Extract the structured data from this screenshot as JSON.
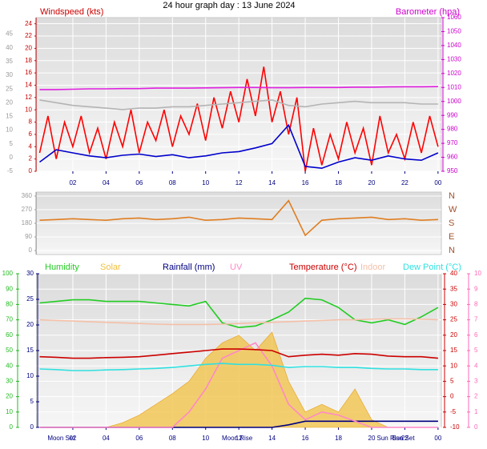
{
  "chart_data": [
    {
      "type": "line",
      "title": "24 hour graph day : 13 June 2024",
      "ylabel": "Windspeed (kts)",
      "y2label": "Barometer (hpa)",
      "x": [
        0,
        1,
        2,
        3,
        4,
        5,
        6,
        7,
        8,
        9,
        10,
        11,
        12,
        13,
        14,
        15,
        16,
        17,
        18,
        19,
        20,
        21,
        22,
        23,
        24
      ],
      "xlim": [
        0,
        24.2
      ],
      "xticks": [
        {
          "value": 2,
          "label": "02"
        },
        {
          "value": 4,
          "label": "04"
        },
        {
          "value": 6,
          "label": "06"
        },
        {
          "value": 8,
          "label": "08"
        },
        10,
        12,
        14,
        16,
        18,
        20,
        22,
        {
          "value": 24,
          "label": "00"
        }
      ],
      "ylim": [
        0,
        25
      ],
      "yticks": [
        0,
        2,
        4,
        6,
        8,
        10,
        12,
        14,
        16,
        18,
        20,
        22,
        24
      ],
      "y2lim": [
        950,
        1060
      ],
      "y2ticks": [
        950,
        960,
        970,
        980,
        990,
        1000,
        1010,
        1020,
        1030,
        1040,
        1050,
        1060
      ],
      "y3lim": [
        -5,
        51
      ],
      "y3ticks": [
        -5,
        0,
        5,
        10,
        15,
        20,
        25,
        30,
        35,
        40,
        45
      ],
      "grid": true,
      "series": [
        {
          "color": "#ff0000",
          "x": [
            0,
            0.5,
            1,
            1.5,
            2,
            2.5,
            3,
            3.5,
            4,
            4.5,
            5,
            5.5,
            6,
            6.5,
            7,
            7.5,
            8,
            8.5,
            9,
            9.5,
            10,
            10.5,
            11,
            11.5,
            12,
            12.5,
            13,
            13.5,
            14,
            14.5,
            15,
            15.5,
            16,
            16.5,
            17,
            17.5,
            18,
            18.5,
            19,
            19.5,
            20,
            20.5,
            21,
            21.5,
            22,
            22.5,
            23,
            23.5,
            24
          ],
          "values": [
            3,
            9,
            2,
            8,
            4,
            9,
            3,
            7,
            2,
            8,
            4,
            10,
            3,
            8,
            5,
            10,
            4,
            9,
            6,
            11,
            5,
            12,
            7,
            13,
            8,
            15,
            9,
            17,
            8,
            13,
            6,
            12,
            0,
            7,
            1,
            6,
            2,
            8,
            3,
            7,
            1,
            9,
            3,
            6,
            2,
            8,
            3,
            9,
            4
          ]
        },
        {
          "color": "#0000cc",
          "values": [
            1.5,
            3.5,
            3,
            2.5,
            2.2,
            2.6,
            2.8,
            2.4,
            2.7,
            2.2,
            2.5,
            3,
            3.2,
            3.8,
            4.5,
            7.5,
            0.8,
            0.5,
            1.5,
            2.2,
            1.8,
            2.5,
            2,
            1.8,
            3
          ]
        },
        {
          "color": "#b4b4b4",
          "axis": "y3",
          "values": [
            21,
            20,
            19,
            18.5,
            18,
            17.5,
            18,
            18,
            18.5,
            18.5,
            19,
            19.5,
            20,
            20.5,
            21,
            19,
            18.5,
            19.5,
            20,
            20.5,
            20,
            20,
            20,
            19.5,
            19.5
          ]
        },
        {
          "color": "#e020e0",
          "axis": "y2",
          "values": [
            1008.5,
            1008.5,
            1008.7,
            1009,
            1009,
            1009.2,
            1009.2,
            1009.5,
            1009.5,
            1009.5,
            1009.7,
            1009.8,
            1010,
            1010,
            1009.8,
            1009.8,
            1010,
            1010,
            1010,
            1010.2,
            1010.2,
            1010.4,
            1010.5,
            1010.5,
            1010.6
          ]
        }
      ]
    },
    {
      "type": "line",
      "x": [
        0,
        1,
        2,
        3,
        4,
        5,
        6,
        7,
        8,
        9,
        10,
        11,
        12,
        13,
        14,
        15,
        16,
        17,
        18,
        19,
        20,
        21,
        22,
        23,
        24
      ],
      "xlim": [
        0,
        24.2
      ],
      "ylim": [
        0,
        360
      ],
      "yticks": [
        0,
        90,
        180,
        270,
        360
      ],
      "y2lim": [
        0,
        360
      ],
      "y2ticks": [
        {
          "value": 360,
          "label": "N"
        },
        {
          "value": 270,
          "label": "W"
        },
        {
          "value": 180,
          "label": "S"
        },
        {
          "value": 90,
          "label": "E"
        },
        {
          "value": 0,
          "label": "N"
        }
      ],
      "grid": true,
      "series": [
        {
          "color": "#e07d20",
          "values": [
            200,
            205,
            210,
            205,
            200,
            210,
            215,
            205,
            210,
            220,
            200,
            205,
            215,
            210,
            205,
            330,
            100,
            200,
            210,
            215,
            220,
            205,
            210,
            200,
            205
          ]
        }
      ]
    },
    {
      "type": "line",
      "x": [
        0,
        1,
        2,
        3,
        4,
        5,
        6,
        7,
        8,
        9,
        10,
        11,
        12,
        13,
        14,
        15,
        16,
        17,
        18,
        19,
        20,
        21,
        22,
        23,
        24
      ],
      "xlim": [
        0,
        24.2
      ],
      "xticks": [
        {
          "value": 2,
          "label": "02"
        },
        {
          "value": 4,
          "label": "04"
        },
        {
          "value": 6,
          "label": "06"
        },
        {
          "value": 8,
          "label": "08"
        },
        10,
        12,
        14,
        16,
        18,
        20,
        22,
        {
          "value": 24,
          "label": "00"
        }
      ],
      "ylim": [
        0,
        100
      ],
      "yticks": [
        0,
        10,
        20,
        30,
        40,
        50,
        60,
        70,
        80,
        90,
        100
      ],
      "y3lim": [
        0,
        30
      ],
      "y3ticks": [
        0,
        5,
        10,
        15,
        20,
        25,
        30
      ],
      "y2lim": [
        -10,
        40
      ],
      "y2ticks": [
        -10,
        -5,
        0,
        5,
        10,
        15,
        20,
        25,
        30,
        35,
        40
      ],
      "y4lim": [
        0,
        10
      ],
      "y4ticks": [
        0,
        1,
        2,
        3,
        4,
        5,
        6,
        7,
        8,
        9,
        10
      ],
      "grid": true,
      "series": [
        {
          "name": "Humidity",
          "color": "#22cc22",
          "values": [
            81,
            82,
            83,
            83,
            82,
            82,
            82,
            81,
            80,
            79,
            82,
            68,
            65,
            66,
            70,
            75,
            84,
            83,
            78,
            70,
            68,
            70,
            67,
            72,
            78
          ]
        },
        {
          "name": "Solar",
          "color": "#f0c040",
          "type": "area",
          "values": [
            0,
            0,
            0,
            0,
            0,
            3,
            8,
            15,
            22,
            30,
            45,
            55,
            60,
            50,
            62,
            30,
            10,
            15,
            10,
            25,
            5,
            0,
            0,
            0,
            0
          ]
        },
        {
          "name": "Rainfall (mm)",
          "color": "#000080",
          "axis": "y3",
          "values": [
            0,
            0,
            0,
            0,
            0,
            0,
            0,
            0,
            0,
            0,
            0,
            0,
            0,
            0,
            0,
            0.5,
            1.2,
            1.2,
            1.2,
            1.2,
            1.2,
            1.2,
            1.2,
            1.2,
            1.2
          ]
        },
        {
          "name": "UV",
          "color": "#ff88c8",
          "axis": "y4",
          "values": [
            0,
            0,
            0,
            0,
            0,
            0,
            0,
            0,
            0,
            1,
            2.5,
            4.5,
            5,
            5.5,
            4,
            1.5,
            0.5,
            1,
            0.8,
            0.4,
            0,
            0,
            0,
            0,
            0
          ]
        },
        {
          "name": "Temperature (°C)",
          "color": "#cc0000",
          "axis": "y2",
          "values": [
            13,
            12.8,
            12.5,
            12.5,
            12.7,
            12.8,
            13,
            13.5,
            14,
            14.5,
            15,
            15.5,
            15.5,
            15.3,
            15,
            13,
            13.5,
            13.8,
            13.5,
            14,
            13.8,
            13.2,
            13,
            13,
            12.5
          ]
        },
        {
          "name": "Indoor",
          "color": "#f4c0a8",
          "axis": "y2",
          "values": [
            25,
            24.8,
            24.6,
            24.4,
            24.2,
            24,
            23.8,
            23.6,
            23.5,
            23.5,
            23.5,
            23.6,
            23.8,
            24,
            24.2,
            24.4,
            24.6,
            24.8,
            25,
            25,
            25.2,
            25.3,
            25.3,
            25.2,
            25
          ]
        },
        {
          "name": "Dew Point (°C)",
          "color": "#30e0e0",
          "axis": "y2",
          "values": [
            9,
            8.8,
            8.5,
            8.5,
            8.7,
            8.8,
            9,
            9.2,
            9.5,
            10,
            10.5,
            10.8,
            10.5,
            10.5,
            10.2,
            9.5,
            9.8,
            9.8,
            9.5,
            9.5,
            9.2,
            9,
            9,
            8.8,
            8.8
          ]
        }
      ],
      "annotations": [
        {
          "text": "Moon Set",
          "x": 1.3
        },
        {
          "text": "Moon Rise",
          "x": 11.9
        },
        {
          "text": "Sun Rise",
          "x": 21.1
        },
        {
          "text": "Sun Set",
          "x": 21.9
        }
      ]
    }
  ]
}
